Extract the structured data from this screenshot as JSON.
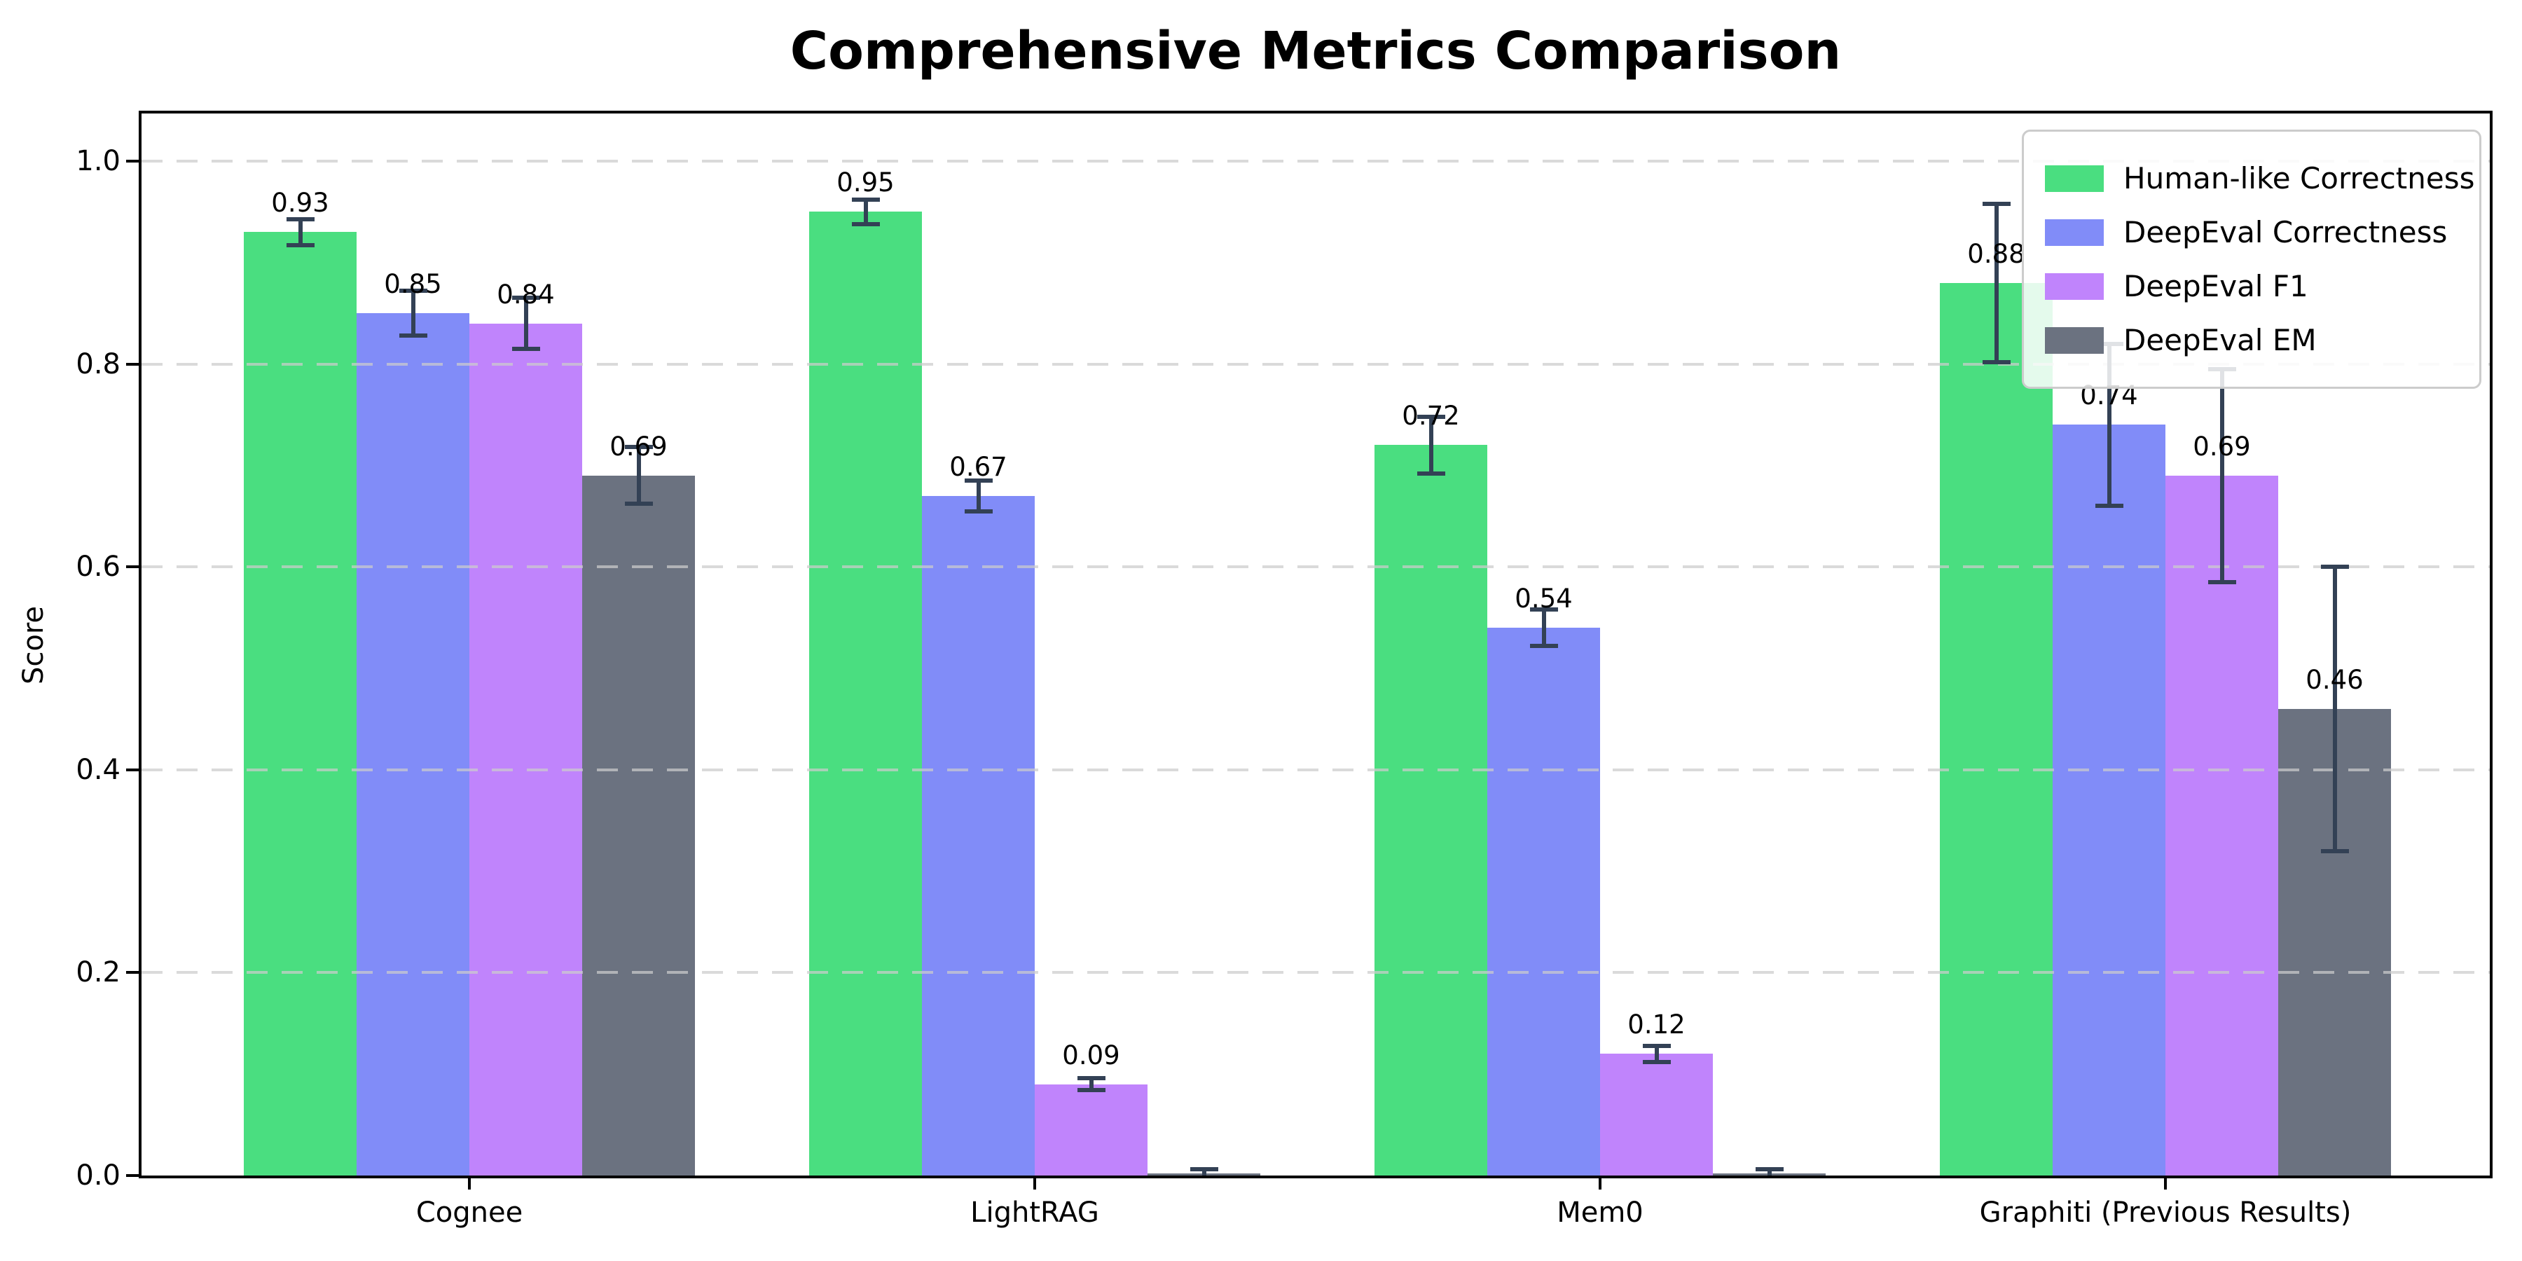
{
  "title": "Comprehensive Metrics Comparison",
  "y_axis_title": "Score",
  "chart_data": {
    "type": "bar",
    "title": "Comprehensive Metrics Comparison",
    "xlabel": "",
    "ylabel": "Score",
    "categories": [
      "Cognee",
      "LightRAG",
      "Mem0",
      "Graphiti (Previous Results)"
    ],
    "series": [
      {
        "name": "Human-like Correctness",
        "color": "#4ade80",
        "values": [
          0.93,
          0.95,
          0.72,
          0.88
        ],
        "errors": [
          0.013,
          0.012,
          0.028,
          0.078
        ],
        "labels": [
          "0.93",
          "0.95",
          "0.72",
          "0.88"
        ]
      },
      {
        "name": "DeepEval Correctness",
        "color": "#818cf8",
        "values": [
          0.85,
          0.67,
          0.54,
          0.74
        ],
        "errors": [
          0.022,
          0.015,
          0.018,
          0.08
        ],
        "labels": [
          "0.85",
          "0.67",
          "0.54",
          "0.74"
        ]
      },
      {
        "name": "DeepEval F1",
        "color": "#c084fc",
        "values": [
          0.84,
          0.09,
          0.12,
          0.69
        ],
        "errors": [
          0.025,
          0.006,
          0.008,
          0.105
        ],
        "labels": [
          "0.84",
          "0.09",
          "0.12",
          "0.69"
        ]
      },
      {
        "name": "DeepEval EM",
        "color": "#6b7280",
        "values": [
          0.69,
          0.002,
          0.002,
          0.46
        ],
        "errors": [
          0.028,
          0.004,
          0.004,
          0.14
        ],
        "labels": [
          "0.69",
          "",
          "",
          "0.46"
        ]
      }
    ],
    "ytick_labels": [
      "0.0",
      "0.2",
      "0.4",
      "0.6",
      "0.8",
      "1.0"
    ],
    "yticks": [
      0.0,
      0.2,
      0.4,
      0.6,
      0.8,
      1.0
    ],
    "ylim": [
      0.0,
      1.05
    ],
    "grid": "horizontal-dashed",
    "grid_color": "#cccccc",
    "error_bar_color": "#334155",
    "legend_position": "upper-right",
    "legend_entries": [
      "Human-like Correctness",
      "DeepEval Correctness",
      "DeepEval F1",
      "DeepEval EM"
    ]
  }
}
